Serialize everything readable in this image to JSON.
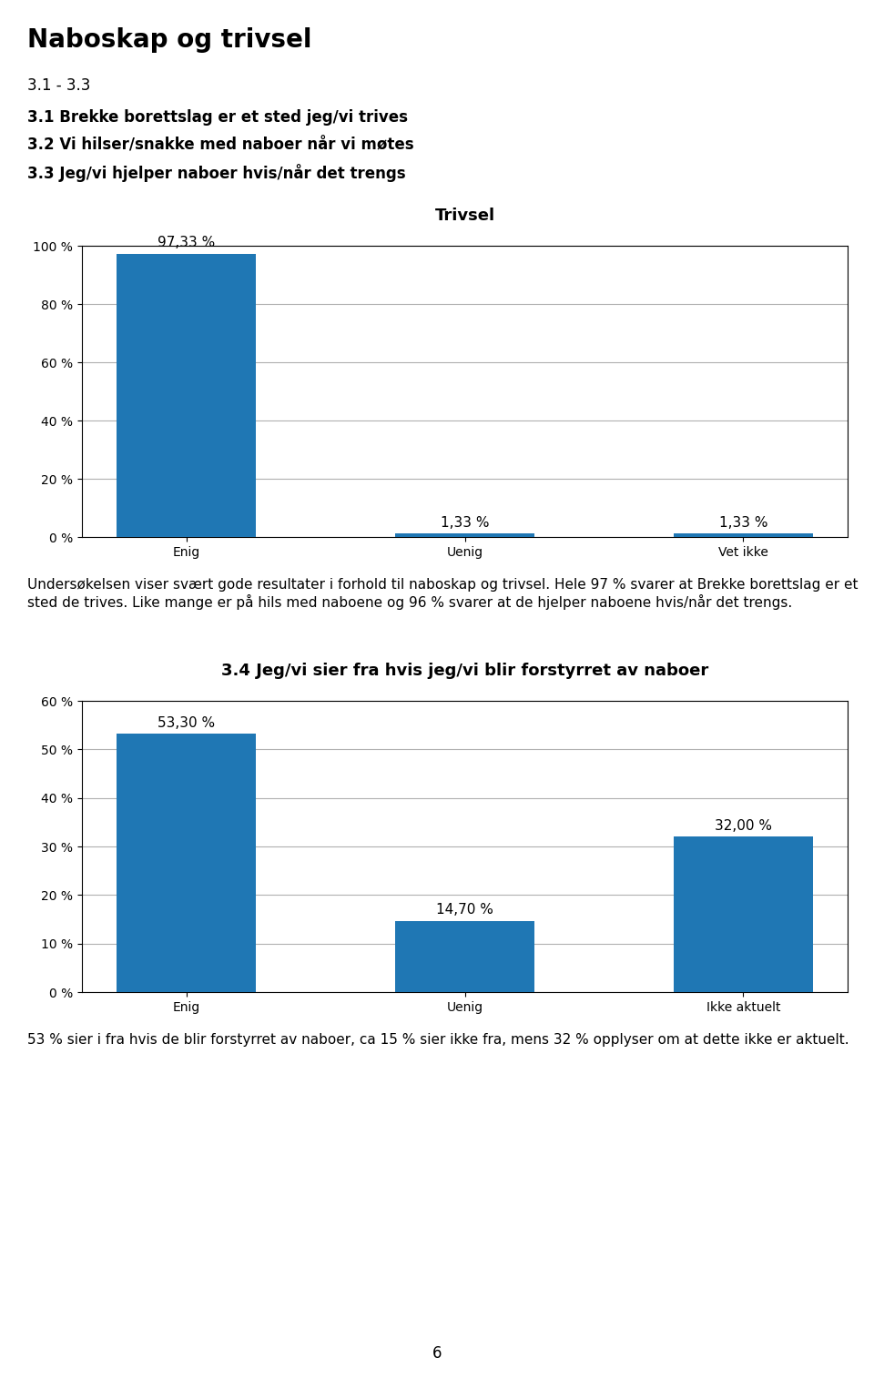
{
  "title": "Naboskap og trivsel",
  "subtitle": "3.1 - 3.3",
  "annotations": [
    "3.1 Brekke borettslag er et sted jeg/vi trives",
    "3.2 Vi hilser/snakke med naboer når vi møtes",
    "3.3 Jeg/vi hjelper naboer hvis/når det trengs",
    "6"
  ],
  "chart_data": [
    {
      "type": "bar",
      "title": "Trivsel",
      "categories": [
        "Enig",
        "Uenig",
        "Vet ikke"
      ],
      "values": [
        97.33,
        1.33,
        1.33
      ],
      "value_labels": [
        "97,33 %",
        "1,33 %",
        "1,33 %"
      ],
      "data_labels": true,
      "ylim": [
        0,
        100
      ],
      "yticks": [
        {
          "value": 0,
          "label": "0 %"
        },
        {
          "value": 20,
          "label": "20 %"
        },
        {
          "value": 40,
          "label": "40 %"
        },
        {
          "value": 60,
          "label": "60 %"
        },
        {
          "value": 80,
          "label": "80 %"
        },
        {
          "value": 100,
          "label": "100 %"
        }
      ],
      "grid": true,
      "annotations": [
        "Undersøkelsen viser svært gode resultater i forhold til naboskap og trivsel. Hele 97 % svarer at Brekke borettslag er et sted de trives. Like mange er på hils med naboene og 96 % svarer at de hjelper naboene hvis/når det trengs."
      ]
    },
    {
      "type": "bar",
      "title": "3.4 Jeg/vi sier fra hvis jeg/vi blir forstyrret av naboer",
      "categories": [
        "Enig",
        "Uenig",
        "Ikke aktuelt"
      ],
      "values": [
        53.3,
        14.7,
        32.0
      ],
      "value_labels": [
        "53,30 %",
        "14,70 %",
        "32,00 %"
      ],
      "data_labels": true,
      "ylim": [
        0,
        60
      ],
      "yticks": [
        {
          "value": 0,
          "label": "0 %"
        },
        {
          "value": 10,
          "label": "10 %"
        },
        {
          "value": 20,
          "label": "20 %"
        },
        {
          "value": 30,
          "label": "30 %"
        },
        {
          "value": 40,
          "label": "40 %"
        },
        {
          "value": 50,
          "label": "50 %"
        },
        {
          "value": 60,
          "label": "60 %"
        }
      ],
      "grid": true,
      "annotations": [
        "53 % sier i fra hvis de blir forstyrret av naboer, ca 15 % sier ikke fra, mens 32 % opplyser om at dette ikke er aktuelt."
      ]
    }
  ]
}
